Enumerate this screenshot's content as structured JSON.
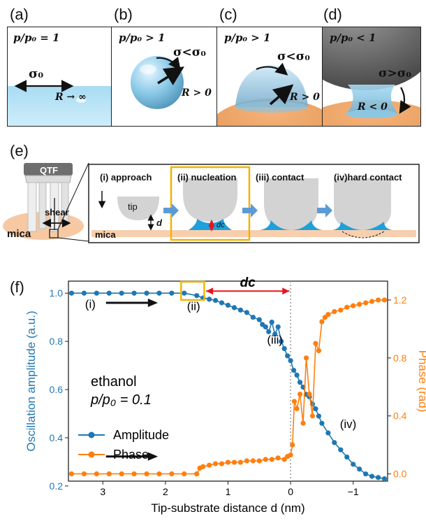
{
  "panels_top": [
    {
      "label": "(a)",
      "ratio": "p/p₀ = 1",
      "sigma": "σ₀",
      "radius": "R → ∞"
    },
    {
      "label": "(b)",
      "ratio": "p/p₀ > 1",
      "sigma": "σ<σ₀",
      "radius": "R > 0"
    },
    {
      "label": "(c)",
      "ratio": "p/p₀ > 1",
      "sigma": "σ<σ₀",
      "radius": "R > 0"
    },
    {
      "label": "(d)",
      "ratio": "p/p₀ < 1",
      "sigma": "σ>σ₀",
      "radius": "R < 0"
    }
  ],
  "panel_e": {
    "label": "(e)",
    "qtf": "QTF",
    "shear": "shear",
    "mica_left": "mica",
    "mica_strip": "mica",
    "tip": "tip",
    "d": "d",
    "dc": "dc",
    "steps": [
      "(i) approach",
      "(ii) nucleation",
      "(iii) contact",
      "(iv)hard contact"
    ]
  },
  "panel_f": {
    "label": "(f)",
    "dc_label": "dc",
    "annotations": {
      "i": "(i)",
      "ii": "(ii)",
      "iii": "(iii)",
      "iv": "(iv)"
    },
    "solvent": "ethanol",
    "pressure": "p/p₀ = 0.1"
  },
  "chart_data": {
    "type": "line",
    "xlabel": "Tip-substrate distance d (nm)",
    "ylabel": "Oscillation amplitude (a.u.)",
    "y2label": "Phase (rad)",
    "xlim": [
      3.55,
      -1.55
    ],
    "x_ticks": [
      3,
      2,
      1,
      0,
      -1
    ],
    "x_tick_labels": [
      "3",
      "2",
      "1",
      "0",
      "−1"
    ],
    "ylim": [
      0.22,
      1.05
    ],
    "y_ticks": [
      0.2,
      0.4,
      0.6,
      0.8,
      1.0
    ],
    "y_tick_labels": [
      "0.2",
      "0.4",
      "0.6",
      "0.8",
      "1.0"
    ],
    "y2lim": [
      -0.05,
      1.33
    ],
    "y2_ticks": [
      0.0,
      0.4,
      0.8,
      1.2
    ],
    "y2_tick_labels": [
      "0.0",
      "0.4",
      "0.8",
      "1.2"
    ],
    "legend_placement": "middle-left",
    "colors": {
      "amplitude": "#1f77b4",
      "phase": "#ff7f0e",
      "dc_arrow": "#e8141e",
      "nucleation_box": "#f0b400"
    },
    "series": [
      {
        "name": "Amplitude",
        "axis": "left",
        "x": [
          3.5,
          3.3,
          3.1,
          2.9,
          2.7,
          2.5,
          2.3,
          2.1,
          1.9,
          1.7,
          1.5,
          1.4,
          1.3,
          1.2,
          1.1,
          1.0,
          0.9,
          0.8,
          0.7,
          0.6,
          0.5,
          0.45,
          0.4,
          0.35,
          0.3,
          0.25,
          0.2,
          0.15,
          0.1,
          0.05,
          0.0,
          -0.05,
          -0.1,
          -0.15,
          -0.2,
          -0.25,
          -0.3,
          -0.35,
          -0.4,
          -0.45,
          -0.5,
          -0.6,
          -0.7,
          -0.8,
          -0.9,
          -1.0,
          -1.1,
          -1.2,
          -1.3,
          -1.4,
          -1.5
        ],
        "y": [
          1.0,
          1.0,
          1.0,
          1.0,
          1.0,
          1.0,
          1.0,
          1.0,
          1.0,
          1.0,
          0.99,
          0.98,
          0.975,
          0.97,
          0.96,
          0.95,
          0.94,
          0.93,
          0.92,
          0.9,
          0.89,
          0.87,
          0.86,
          0.84,
          0.88,
          0.83,
          0.86,
          0.8,
          0.77,
          0.74,
          0.72,
          0.68,
          0.66,
          0.63,
          0.61,
          0.58,
          0.57,
          0.54,
          0.52,
          0.49,
          0.46,
          0.42,
          0.38,
          0.35,
          0.32,
          0.29,
          0.27,
          0.25,
          0.24,
          0.235,
          0.23
        ]
      },
      {
        "name": "Phase",
        "axis": "right",
        "x": [
          3.5,
          3.3,
          3.1,
          2.9,
          2.7,
          2.5,
          2.3,
          2.1,
          1.9,
          1.7,
          1.5,
          1.45,
          1.4,
          1.3,
          1.2,
          1.1,
          1.0,
          0.9,
          0.8,
          0.7,
          0.6,
          0.5,
          0.4,
          0.3,
          0.2,
          0.1,
          0.05,
          0.0,
          -0.03,
          -0.06,
          -0.1,
          -0.15,
          -0.2,
          -0.25,
          -0.3,
          -0.35,
          -0.4,
          -0.45,
          -0.5,
          -0.55,
          -0.6,
          -0.7,
          -0.8,
          -0.9,
          -1.0,
          -1.1,
          -1.2,
          -1.3,
          -1.4,
          -1.5
        ],
        "y": [
          0.0,
          0.0,
          0.0,
          0.0,
          0.0,
          0.0,
          0.0,
          0.0,
          0.0,
          0.0,
          0.0,
          0.04,
          0.05,
          0.06,
          0.07,
          0.07,
          0.08,
          0.08,
          0.08,
          0.09,
          0.09,
          0.09,
          0.1,
          0.1,
          0.11,
          0.1,
          0.12,
          0.13,
          0.2,
          0.5,
          0.45,
          0.55,
          0.35,
          0.8,
          0.55,
          0.4,
          0.9,
          0.85,
          1.05,
          1.08,
          1.1,
          1.12,
          1.13,
          1.15,
          1.16,
          1.17,
          1.18,
          1.19,
          1.2,
          1.2
        ]
      }
    ]
  }
}
